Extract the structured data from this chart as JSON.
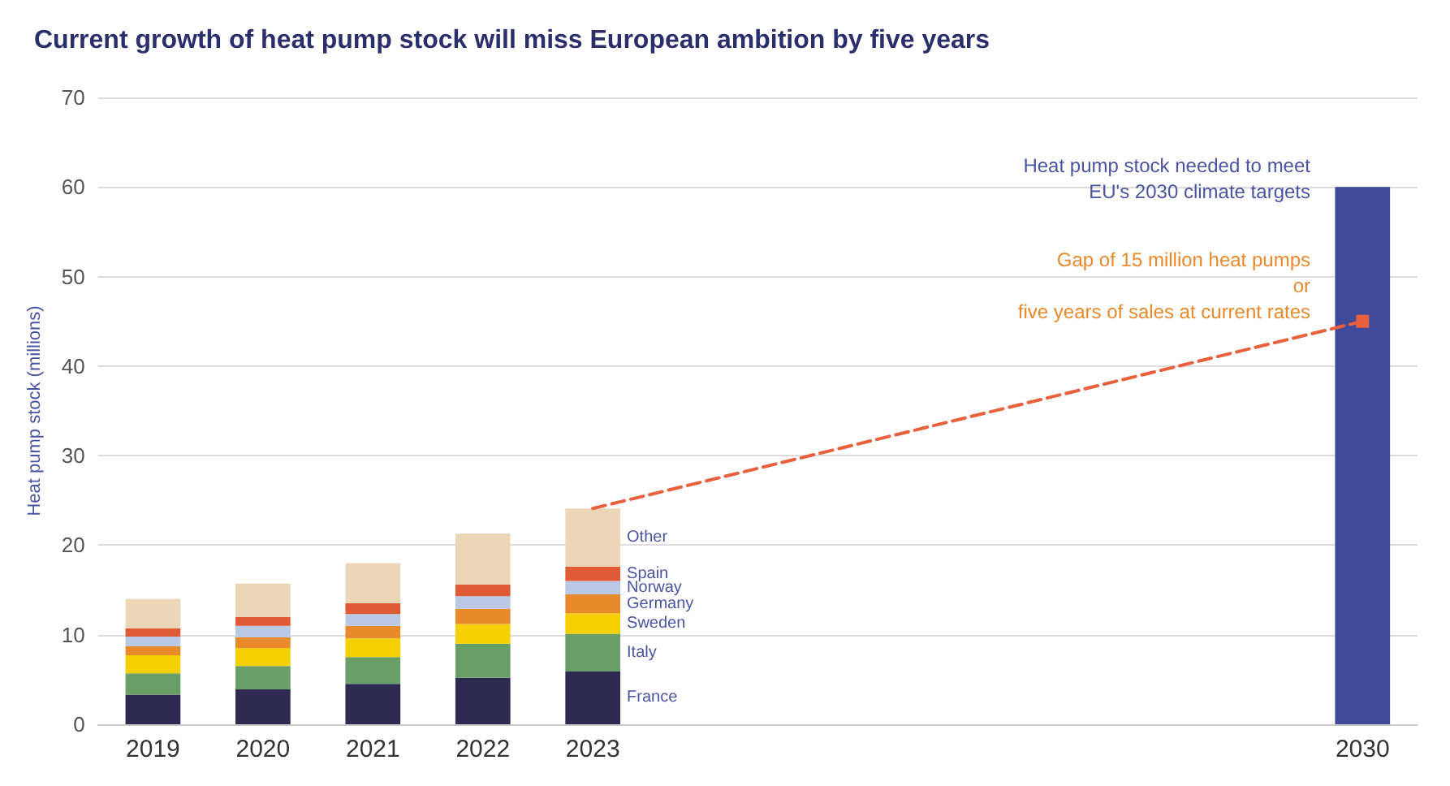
{
  "chart_data": {
    "type": "bar",
    "title": "Current growth of heat pump stock will miss European ambition by five years",
    "ylabel": "Heat pump stock (millions)",
    "categories": [
      "2019",
      "2020",
      "2021",
      "2022",
      "2023",
      null,
      null,
      null,
      null,
      null,
      null,
      "2030"
    ],
    "stacked": true,
    "series": [
      {
        "name": "France",
        "color": "#2f2a52",
        "values": [
          3.3,
          3.9,
          4.5,
          5.2,
          5.9,
          null,
          null,
          null,
          null,
          null,
          null,
          null
        ]
      },
      {
        "name": "Italy",
        "color": "#6a9e68",
        "values": [
          2.4,
          2.6,
          3.0,
          3.8,
          4.2,
          null,
          null,
          null,
          null,
          null,
          null,
          null
        ]
      },
      {
        "name": "Sweden",
        "color": "#f5d000",
        "values": [
          2.0,
          2.0,
          2.1,
          2.2,
          2.3,
          null,
          null,
          null,
          null,
          null,
          null,
          null
        ]
      },
      {
        "name": "Germany",
        "color": "#e8892c",
        "values": [
          1.0,
          1.2,
          1.4,
          1.7,
          2.1,
          null,
          null,
          null,
          null,
          null,
          null,
          null
        ]
      },
      {
        "name": "Norway",
        "color": "#b9c8e4",
        "values": [
          1.1,
          1.3,
          1.3,
          1.4,
          1.5,
          null,
          null,
          null,
          null,
          null,
          null,
          null
        ]
      },
      {
        "name": "Spain",
        "color": "#e05a35",
        "values": [
          0.9,
          1.0,
          1.2,
          1.3,
          1.6,
          null,
          null,
          null,
          null,
          null,
          null,
          null
        ]
      },
      {
        "name": "Other",
        "color": "#ecd6b8",
        "values": [
          3.3,
          3.7,
          4.5,
          5.7,
          6.5,
          null,
          null,
          null,
          null,
          null,
          null,
          null
        ]
      },
      {
        "color": "#3f4a9a",
        "values": [
          null,
          null,
          null,
          null,
          null,
          null,
          null,
          null,
          null,
          null,
          null,
          60
        ]
      },
      {
        "type": "line",
        "color": "#e8603c",
        "values": [
          null,
          null,
          null,
          null,
          24.1,
          null,
          null,
          null,
          null,
          null,
          null,
          45
        ],
        "marker": "square",
        "line_style": "dashed"
      }
    ],
    "ylim": [
      0,
      70
    ],
    "yticks": [
      0,
      10,
      20,
      30,
      40,
      50,
      60,
      70
    ],
    "grid": "y",
    "legend": false,
    "annotations": [
      "Heat pump stock needed to meet\nEU's 2030 climate targets",
      "Gap of 15 million heat pumps\nor\nfive years of sales at current rates"
    ]
  }
}
